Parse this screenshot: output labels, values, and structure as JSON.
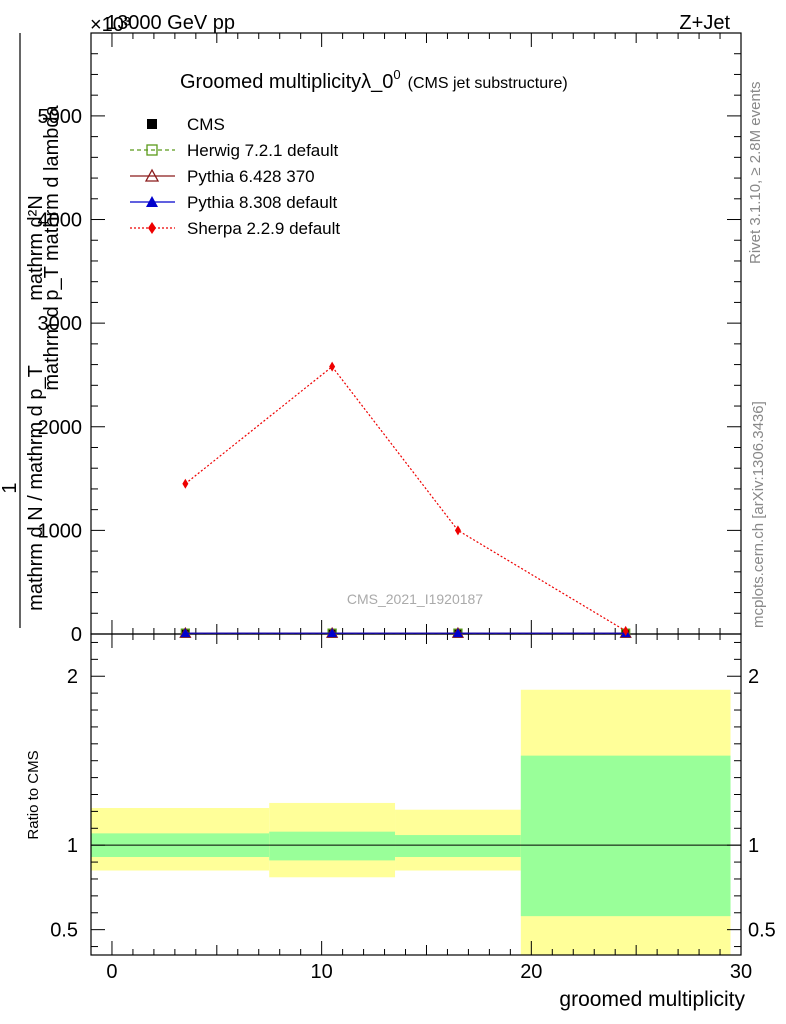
{
  "header": {
    "left": "13000 GeV pp",
    "right": "Z+Jet",
    "exponent": "×10³"
  },
  "title": {
    "main": "Groomed multiplicityλ_0",
    "sup": "0",
    "sub": "(CMS jet substructure)"
  },
  "side_labels": {
    "rivet": "Rivet 3.1.10, ≥ 2.8M events",
    "mcplots": "mcplots.cern.ch [arXiv:1306.3436]"
  },
  "watermark": "CMS_2021_I1920187",
  "ylabel_main": {
    "line1": "mathrm d²N",
    "line2": "mathrm d p_T mathrm d lambda",
    "one": "1",
    "line3": "mathrm d N / mathrm d p_T"
  },
  "ylabel_ratio": "Ratio to CMS",
  "xlabel": "groomed multiplicity",
  "legend": [
    {
      "label": "CMS",
      "color": "#000000",
      "style": "square"
    },
    {
      "label": "Herwig 7.2.1 default",
      "color": "#5b9a1a",
      "style": "open-square-dashed"
    },
    {
      "label": "Pythia 6.428 370",
      "color": "#8b1a1a",
      "style": "open-triangle-solid"
    },
    {
      "label": "Pythia 8.308 default",
      "color": "#0000cc",
      "style": "filled-triangle-solid"
    },
    {
      "label": "Sherpa 2.2.9 default",
      "color": "#ee0000",
      "style": "diamond-dotted"
    }
  ],
  "chart_data": {
    "type": "line",
    "x": [
      3.5,
      10.5,
      16.5,
      24.5
    ],
    "bins": [
      [
        -1,
        7.5
      ],
      [
        7.5,
        13.5
      ],
      [
        13.5,
        19.5
      ],
      [
        19.5,
        29.5
      ]
    ],
    "xlim": [
      -1,
      30
    ],
    "ylim": [
      0,
      5800
    ],
    "y_tick_labels": [
      "0",
      "1000",
      "2000",
      "3000",
      "4000",
      "5000"
    ],
    "y_tick_values": [
      0,
      1000,
      2000,
      3000,
      4000,
      5000
    ],
    "x_tick_labels": [
      "0",
      "10",
      "20",
      "30"
    ],
    "x_tick_values": [
      0,
      10,
      20,
      30
    ],
    "series": [
      {
        "name": "CMS",
        "values": [
          8,
          8,
          8,
          8
        ]
      },
      {
        "name": "Herwig 7.2.1 default",
        "values": [
          8,
          8,
          8,
          8
        ]
      },
      {
        "name": "Pythia 6.428 370",
        "values": [
          8,
          8,
          8,
          8
        ]
      },
      {
        "name": "Pythia 8.308 default",
        "values": [
          8,
          8,
          8,
          8
        ]
      },
      {
        "name": "Sherpa 2.2.9 default",
        "values": [
          1450,
          2580,
          1000,
          30
        ]
      }
    ],
    "ratio": {
      "ylim": [
        0.35,
        2.25
      ],
      "tick_labels": [
        "0.5",
        "1",
        "2"
      ],
      "tick_values": [
        0.5,
        1,
        2
      ],
      "band_stat_low": [
        0.93,
        0.91,
        0.93,
        0.58
      ],
      "band_stat_high": [
        1.07,
        1.08,
        1.06,
        1.53
      ],
      "band_total_low": [
        0.85,
        0.81,
        0.85,
        0.35
      ],
      "band_total_high": [
        1.22,
        1.25,
        1.21,
        1.92
      ]
    }
  }
}
